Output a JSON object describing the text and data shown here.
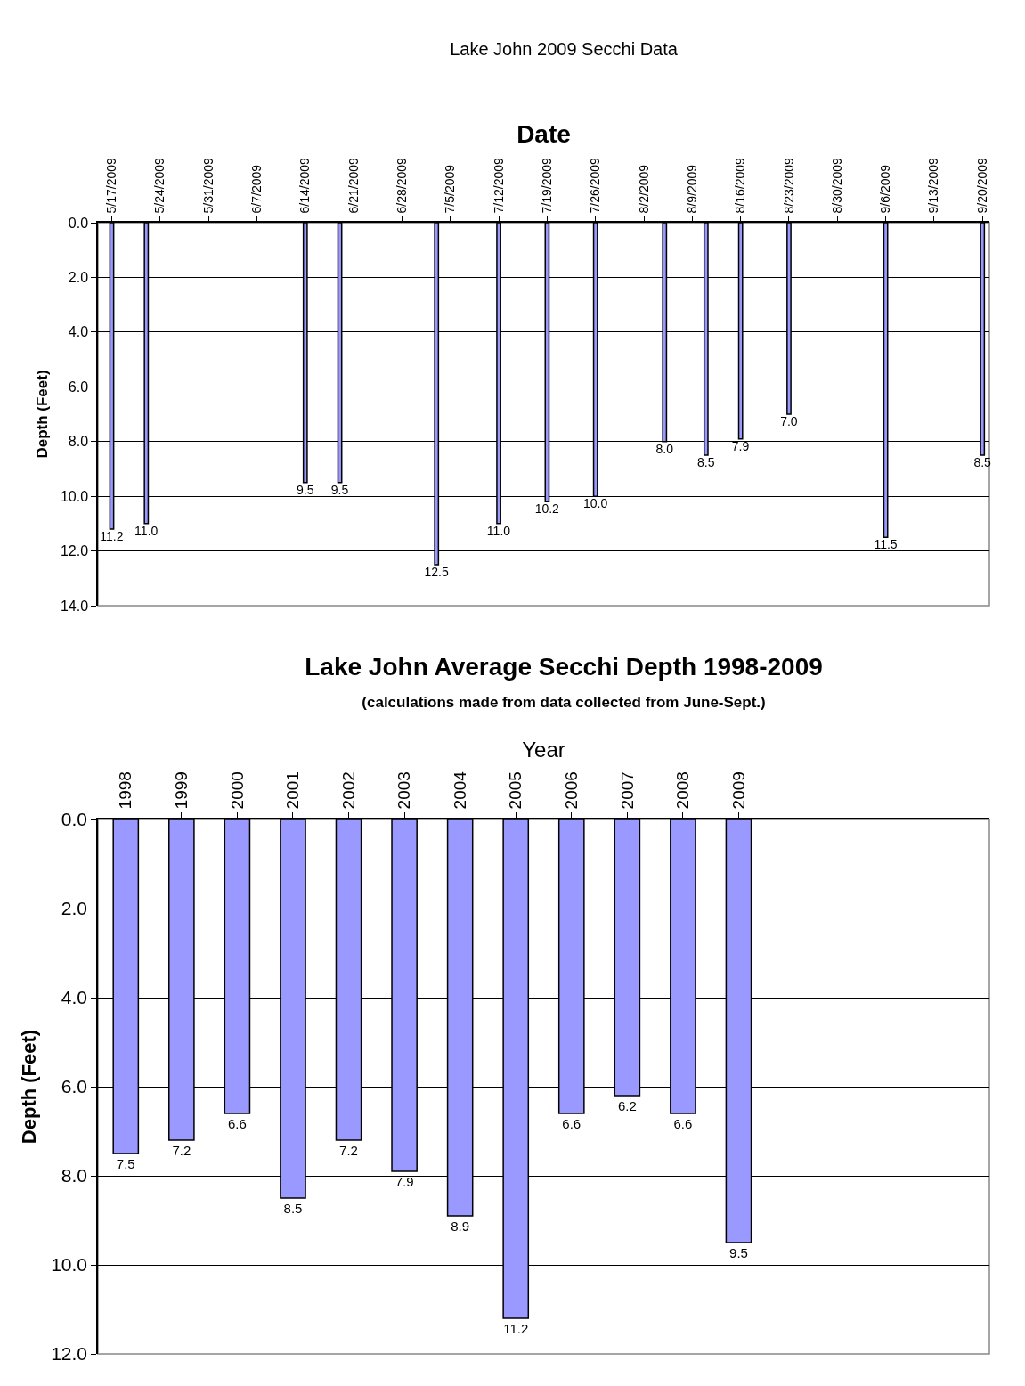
{
  "chart_data": [
    {
      "type": "bar",
      "title": "Lake John 2009 Secchi Data",
      "xlabel": "Date",
      "ylabel": "Depth (Feet)",
      "x": [
        "2009-05-17",
        "2009-05-22",
        "2009-06-14",
        "2009-06-19",
        "2009-07-03",
        "2009-07-12",
        "2009-07-19",
        "2009-07-26",
        "2009-08-05",
        "2009-08-11",
        "2009-08-16",
        "2009-08-23",
        "2009-09-06",
        "2009-09-20"
      ],
      "values": [
        11.2,
        11.0,
        9.5,
        9.5,
        12.5,
        11.0,
        10.2,
        10.0,
        8.0,
        8.5,
        7.9,
        7.0,
        11.5,
        8.5
      ],
      "value_labels": [
        "11.2",
        "11.0",
        "9.5",
        "9.5",
        "12.5",
        "11.0",
        "10.2",
        "10.0",
        "8.0",
        "8.5",
        "7.9",
        "7.0",
        "11.5",
        "8.5"
      ],
      "color": "#9999ff",
      "xlim": [
        "2009-05-15",
        "2009-09-21"
      ],
      "xticks": [
        {
          "value": "2009-05-17",
          "label": "5/17/2009"
        },
        {
          "value": "2009-05-24",
          "label": "5/24/2009"
        },
        {
          "value": "2009-05-31",
          "label": "5/31/2009"
        },
        {
          "value": "2009-06-07",
          "label": "6/7/2009"
        },
        {
          "value": "2009-06-14",
          "label": "6/14/2009"
        },
        {
          "value": "2009-06-21",
          "label": "6/21/2009"
        },
        {
          "value": "2009-06-28",
          "label": "6/28/2009"
        },
        {
          "value": "2009-07-05",
          "label": "7/5/2009"
        },
        {
          "value": "2009-07-12",
          "label": "7/12/2009"
        },
        {
          "value": "2009-07-19",
          "label": "7/19/2009"
        },
        {
          "value": "2009-07-26",
          "label": "7/26/2009"
        },
        {
          "value": "2009-08-02",
          "label": "8/2/2009"
        },
        {
          "value": "2009-08-09",
          "label": "8/9/2009"
        },
        {
          "value": "2009-08-16",
          "label": "8/16/2009"
        },
        {
          "value": "2009-08-23",
          "label": "8/23/2009"
        },
        {
          "value": "2009-08-30",
          "label": "8/30/2009"
        },
        {
          "value": "2009-09-06",
          "label": "9/6/2009"
        },
        {
          "value": "2009-09-13",
          "label": "9/13/2009"
        },
        {
          "value": "2009-09-20",
          "label": "9/20/2009"
        }
      ],
      "ylim": [
        14,
        0
      ],
      "yticks": [
        {
          "value": 0,
          "label": "0.0"
        },
        {
          "value": 2,
          "label": "2.0"
        },
        {
          "value": 4,
          "label": "4.0"
        },
        {
          "value": 6,
          "label": "6.0"
        },
        {
          "value": 8,
          "label": "8.0"
        },
        {
          "value": 10,
          "label": "10.0"
        },
        {
          "value": 12,
          "label": "12.0"
        },
        {
          "value": 14,
          "label": "14.0"
        }
      ],
      "grid": "y"
    },
    {
      "type": "bar",
      "title": "Lake John Average Secchi Depth 1998-2009",
      "subtitle": "(calculations made from data collected from June-Sept.)",
      "xlabel": "Year",
      "ylabel": "Depth (Feet)",
      "categories": [
        "1998",
        "1999",
        "2000",
        "2001",
        "2002",
        "2003",
        "2004",
        "2005",
        "2006",
        "2007",
        "2008",
        "2009",
        null,
        null,
        null,
        null
      ],
      "values": [
        7.5,
        7.2,
        6.6,
        8.5,
        7.2,
        7.9,
        8.9,
        11.2,
        6.6,
        6.2,
        6.6,
        9.5,
        null,
        null,
        null,
        null
      ],
      "value_labels": [
        "7.5",
        "7.2",
        "6.6",
        "8.5",
        "7.2",
        "7.9",
        "8.9",
        "11.2",
        "6.6",
        "6.2",
        "6.6",
        "9.5",
        null,
        null,
        null,
        null
      ],
      "color": "#9999ff",
      "ylim": [
        12,
        0
      ],
      "yticks": [
        {
          "value": 0,
          "label": "0.0"
        },
        {
          "value": 2,
          "label": "2.0"
        },
        {
          "value": 4,
          "label": "4.0"
        },
        {
          "value": 6,
          "label": "6.0"
        },
        {
          "value": 8,
          "label": "8.0"
        },
        {
          "value": 10,
          "label": "10.0"
        },
        {
          "value": 12,
          "label": "12.0"
        }
      ],
      "grid": "y"
    }
  ]
}
